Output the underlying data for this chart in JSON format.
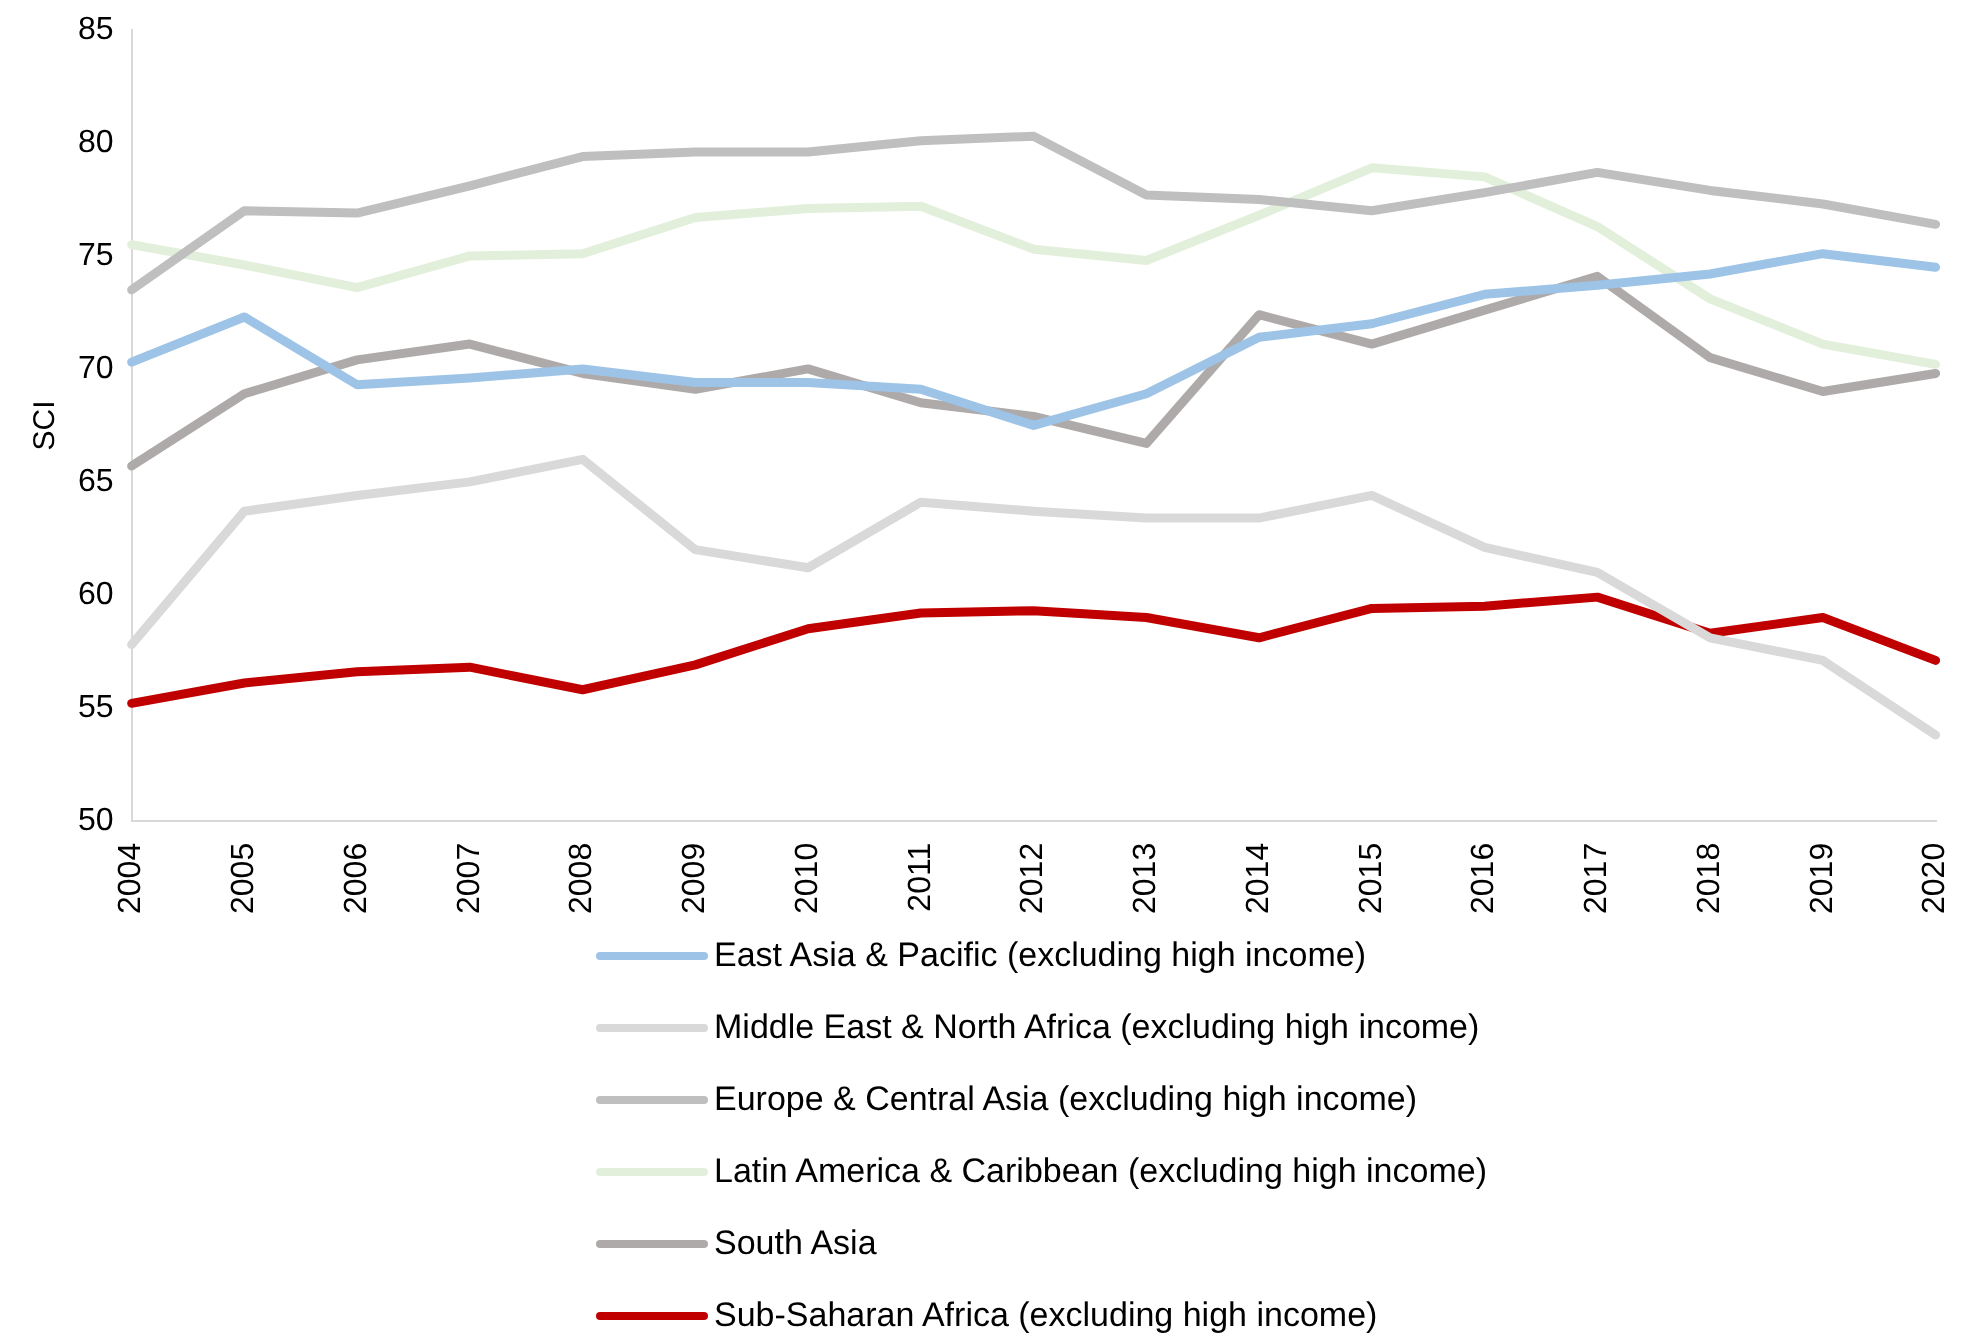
{
  "chart_data": {
    "type": "line",
    "ylabel": "SCI",
    "categories": [
      "2004",
      "2005",
      "2006",
      "2007",
      "2008",
      "2009",
      "2010",
      "2011",
      "2012",
      "2013",
      "2014",
      "2015",
      "2016",
      "2017",
      "2018",
      "2019",
      "2020"
    ],
    "ylim": [
      50,
      85
    ],
    "yticks": [
      50,
      55,
      60,
      65,
      70,
      75,
      80,
      85
    ],
    "grid": false,
    "legend": "bottom",
    "marker": "none",
    "line_style": "solid",
    "series": [
      {
        "name": "East Asia & Pacific (excluding high income)",
        "color": "#9dc3e6",
        "values": [
          70.3,
          72.3,
          69.3,
          69.6,
          70.0,
          69.4,
          69.4,
          69.1,
          67.5,
          68.9,
          71.4,
          72.0,
          73.3,
          73.7,
          74.2,
          75.1,
          74.5
        ]
      },
      {
        "name": "Middle East & North Africa (excluding high income)",
        "color": "#d9d9d9",
        "values": [
          57.8,
          63.7,
          64.4,
          65.0,
          66.0,
          62.0,
          61.2,
          64.1,
          63.7,
          63.4,
          63.4,
          64.4,
          62.1,
          61.0,
          58.1,
          57.1,
          53.8
        ]
      },
      {
        "name": "Europe & Central Asia (excluding high income)",
        "color": "#bfbfbf",
        "values": [
          73.5,
          77.0,
          76.9,
          78.1,
          79.4,
          79.6,
          79.6,
          80.1,
          80.3,
          77.7,
          77.5,
          77.0,
          77.8,
          78.7,
          77.9,
          77.3,
          76.4
        ]
      },
      {
        "name": "Latin America & Caribbean (excluding high income)",
        "color": "#e2efda",
        "values": [
          75.5,
          74.6,
          73.6,
          75.0,
          75.1,
          76.7,
          77.1,
          77.2,
          75.3,
          74.8,
          76.8,
          78.9,
          78.5,
          76.3,
          73.1,
          71.1,
          70.2
        ]
      },
      {
        "name": "South Asia",
        "color": "#aeaaaa",
        "values": [
          65.7,
          68.9,
          70.4,
          71.1,
          69.8,
          69.1,
          70.0,
          68.5,
          67.9,
          66.7,
          72.4,
          71.1,
          72.6,
          74.1,
          70.5,
          69.0,
          69.8
        ]
      },
      {
        "name": "Sub-Saharan Africa (excluding high income)",
        "color": "#c00000",
        "values": [
          55.2,
          56.1,
          56.6,
          56.8,
          55.8,
          56.9,
          58.5,
          59.2,
          59.3,
          59.0,
          58.1,
          59.4,
          59.5,
          59.9,
          58.3,
          59.0,
          57.1
        ]
      }
    ]
  }
}
